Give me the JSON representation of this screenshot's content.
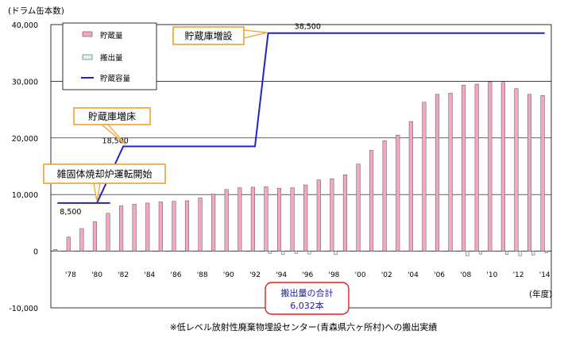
{
  "chart_data": {
    "type": "bar",
    "unit_label": "(ドラム缶本数)",
    "xlabel": "(年度)",
    "ylim": [
      -10000,
      40000
    ],
    "y_ticks": [
      -10000,
      0,
      10000,
      20000,
      30000,
      40000
    ],
    "y_tick_labels": [
      "-10,000",
      "0",
      "10,000",
      "20,000",
      "30,000",
      "40,000"
    ],
    "grid": true,
    "legend_position": "top-left",
    "x": [
      "1977",
      "1978",
      "1979",
      "1980",
      "1981",
      "1982",
      "1983",
      "1984",
      "1985",
      "1986",
      "1987",
      "1988",
      "1989",
      "1990",
      "1991",
      "1992",
      "1993",
      "1994",
      "1995",
      "1996",
      "1997",
      "1998",
      "1999",
      "2000",
      "2001",
      "2002",
      "2003",
      "2004",
      "2005",
      "2006",
      "2007",
      "2008",
      "2009",
      "2010",
      "2011",
      "2012",
      "2013",
      "2014"
    ],
    "x_tick_labels": [
      "'78",
      "'80",
      "'82",
      "'84",
      "'86",
      "'88",
      "'90",
      "'92",
      "'94",
      "'96",
      "'98",
      "'00",
      "'02",
      "'04",
      "'06",
      "'08",
      "'10",
      "'12",
      "'14"
    ],
    "series": [
      {
        "name": "貯蔵量",
        "kind": "bar",
        "color": "#f4a6c6",
        "values": [
          300,
          2500,
          4000,
          5200,
          6700,
          8000,
          8300,
          8500,
          8700,
          8800,
          8900,
          9400,
          10100,
          10900,
          11200,
          11300,
          11400,
          11100,
          11200,
          11700,
          12600,
          12800,
          13500,
          15400,
          17800,
          19500,
          20500,
          22900,
          26300,
          27700,
          27900,
          29300,
          29500,
          29900,
          29800,
          28700,
          27700,
          27500
        ]
      },
      {
        "name": "搬出量",
        "kind": "bar",
        "color": "#d8f2f0",
        "values": [
          0,
          0,
          0,
          0,
          0,
          0,
          0,
          0,
          0,
          0,
          0,
          0,
          0,
          0,
          0,
          0,
          -400,
          -600,
          -400,
          -500,
          0,
          -600,
          0,
          0,
          0,
          0,
          0,
          0,
          0,
          0,
          0,
          -800,
          -500,
          0,
          -600,
          -800,
          -700,
          -300
        ]
      },
      {
        "name": "貯蔵容量",
        "kind": "line",
        "color": "#1f24c8",
        "values": [
          8500,
          8500,
          8500,
          8500,
          8500,
          18500,
          18500,
          18500,
          18500,
          18500,
          18500,
          18500,
          18500,
          18500,
          18500,
          18500,
          38500,
          38500,
          38500,
          38500,
          38500,
          38500,
          38500,
          38500,
          38500,
          38500,
          38500,
          38500,
          38500,
          38500,
          38500,
          38500,
          38500,
          38500,
          38500,
          38500,
          38500,
          38500
        ]
      }
    ],
    "data_labels": [
      {
        "index": 1,
        "value_text": "8,500"
      },
      {
        "index": 5,
        "value_text": "18,500"
      },
      {
        "index": 19,
        "value_text": "38,500"
      }
    ],
    "annotations": [
      {
        "id": "a1",
        "text": "雑固体焼却炉運転開始",
        "style": "orange",
        "index": 3,
        "value": 8500
      },
      {
        "id": "a2",
        "text": "貯蔵庫増床",
        "style": "orange",
        "index": 5,
        "value": 18500
      },
      {
        "id": "a3",
        "text": "貯蔵庫増設",
        "style": "orange",
        "index": 16,
        "value": 38500
      }
    ],
    "total_box": {
      "line1": "搬出量の合計",
      "line2": "6,032本",
      "color": "#e02020"
    },
    "footnote": "※低レベル放射性廃棄物埋設センター(青森県六ヶ所村)への搬出実績"
  }
}
